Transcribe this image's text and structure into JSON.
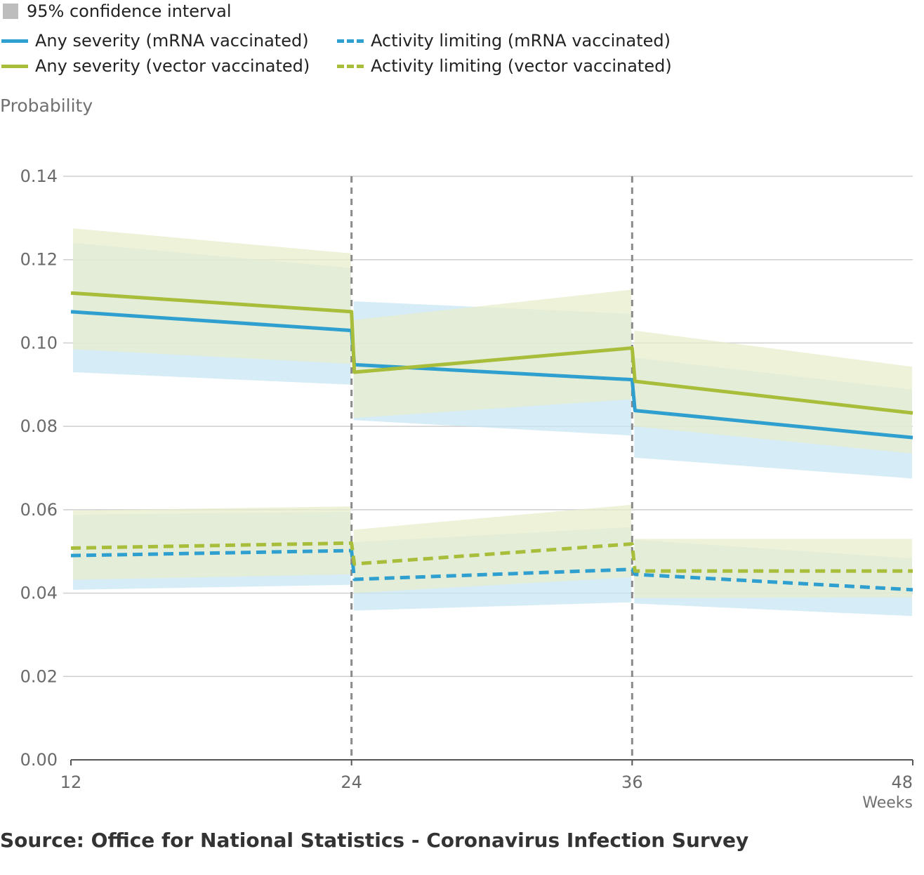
{
  "legend": {
    "ci_label": "95% confidence interval",
    "items": [
      {
        "label": "Any severity (mRNA vaccinated)",
        "color": "#2e9fcf",
        "style": "solid"
      },
      {
        "label": "Activity limiting (mRNA vaccinated)",
        "color": "#2e9fcf",
        "style": "dashed"
      },
      {
        "label": "Any severity (vector vaccinated)",
        "color": "#a8bd3a",
        "style": "solid"
      },
      {
        "label": "Activity limiting (vector vaccinated)",
        "color": "#a8bd3a",
        "style": "dashed"
      }
    ]
  },
  "source": "Source: Office for National Statistics - Coronavirus Infection Survey",
  "chart_data": {
    "type": "line",
    "ylabel": "Probability",
    "xlabel": "Weeks",
    "xlim": [
      12,
      48
    ],
    "ylim": [
      0,
      0.14
    ],
    "x_ticks": [
      "12",
      "24",
      "36",
      "48"
    ],
    "y_ticks": [
      "0.00",
      "0.02",
      "0.04",
      "0.06",
      "0.08",
      "0.10",
      "0.12",
      "0.14"
    ],
    "vertical_reference_lines": [
      24,
      36
    ],
    "grid": true,
    "ci_colors": {
      "mrna": "#c6e4f2",
      "vector": "#e7edca",
      "overlap": "#c3ddc8"
    },
    "series": [
      {
        "name": "Any severity (mRNA vaccinated)",
        "color": "#2e9fcf",
        "dash": false,
        "segments": [
          {
            "x": [
              12,
              24
            ],
            "y": [
              0.1075,
              0.103
            ],
            "lower": [
              0.093,
              0.09
            ],
            "upper": [
              0.124,
              0.118
            ]
          },
          {
            "x": [
              24,
              36
            ],
            "y": [
              0.0948,
              0.0912
            ],
            "lower": [
              0.0815,
              0.0778
            ],
            "upper": [
              0.11,
              0.107
            ]
          },
          {
            "x": [
              36,
              48
            ],
            "y": [
              0.0838,
              0.0773
            ],
            "lower": [
              0.0725,
              0.0675
            ],
            "upper": [
              0.0965,
              0.0888
            ]
          }
        ]
      },
      {
        "name": "Any severity (vector vaccinated)",
        "color": "#a8bd3a",
        "dash": false,
        "segments": [
          {
            "x": [
              12,
              24
            ],
            "y": [
              0.112,
              0.1075
            ],
            "lower": [
              0.0985,
              0.095
            ],
            "upper": [
              0.1275,
              0.1215
            ]
          },
          {
            "x": [
              24,
              36
            ],
            "y": [
              0.093,
              0.0988
            ],
            "lower": [
              0.082,
              0.0865
            ],
            "upper": [
              0.1055,
              0.1128
            ]
          },
          {
            "x": [
              36,
              48
            ],
            "y": [
              0.0908,
              0.0832
            ],
            "lower": [
              0.08,
              0.0735
            ],
            "upper": [
              0.103,
              0.0943
            ]
          }
        ]
      },
      {
        "name": "Activity limiting (mRNA vaccinated)",
        "color": "#2e9fcf",
        "dash": true,
        "segments": [
          {
            "x": [
              12,
              24
            ],
            "y": [
              0.049,
              0.0502
            ],
            "lower": [
              0.0408,
              0.042
            ],
            "upper": [
              0.0588,
              0.0595
            ]
          },
          {
            "x": [
              24,
              36
            ],
            "y": [
              0.0433,
              0.0457
            ],
            "lower": [
              0.0358,
              0.0378
            ],
            "upper": [
              0.0522,
              0.0558
            ]
          },
          {
            "x": [
              36,
              48
            ],
            "y": [
              0.0445,
              0.0408
            ],
            "lower": [
              0.0375,
              0.0345
            ],
            "upper": [
              0.0528,
              0.0483
            ]
          }
        ]
      },
      {
        "name": "Activity limiting (vector vaccinated)",
        "color": "#a8bd3a",
        "dash": true,
        "segments": [
          {
            "x": [
              12,
              24
            ],
            "y": [
              0.0508,
              0.052
            ],
            "lower": [
              0.0432,
              0.0445
            ],
            "upper": [
              0.0598,
              0.0608
            ]
          },
          {
            "x": [
              24,
              36
            ],
            "y": [
              0.047,
              0.0518
            ],
            "lower": [
              0.04,
              0.0438
            ],
            "upper": [
              0.0552,
              0.0612
            ]
          },
          {
            "x": [
              36,
              48
            ],
            "y": [
              0.0453,
              0.0453
            ],
            "lower": [
              0.0388,
              0.039
            ],
            "upper": [
              0.053,
              0.053
            ]
          }
        ]
      }
    ]
  }
}
